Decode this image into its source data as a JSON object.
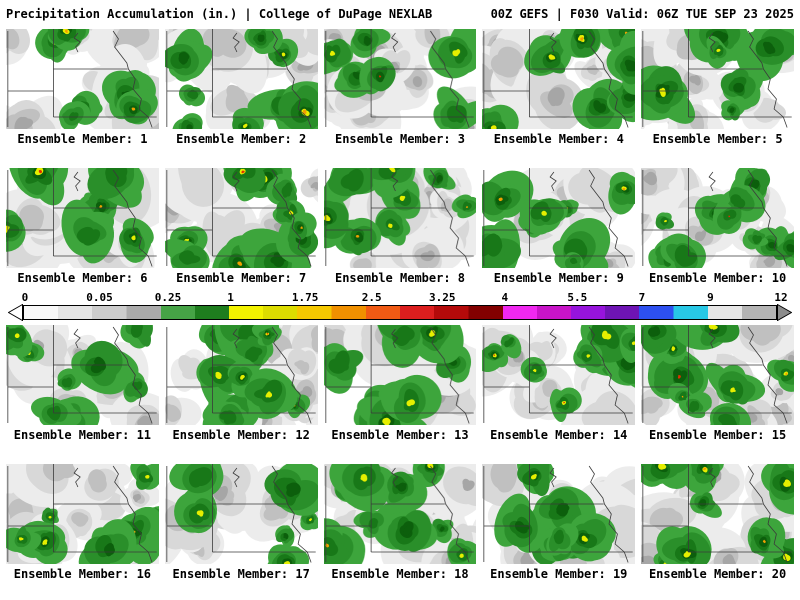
{
  "header": {
    "left": "Precipitation Accumulation (in.) | College of DuPage NEXLAB",
    "right": "00Z GEFS | F030 Valid: 06Z TUE SEP 23 2025"
  },
  "colorbar": {
    "ticks": [
      "0",
      "0.05",
      "0.25",
      "1",
      "1.75",
      "2.5",
      "3.25",
      "4",
      "5.5",
      "7",
      "9",
      "12"
    ],
    "segments": [
      [
        "#f8f8f8",
        "#e4e4e4"
      ],
      [
        "#cccccc",
        "#ababab"
      ],
      [
        "#46a346",
        "#1e7d1e"
      ],
      [
        "#f2f200",
        "#dcdc00"
      ],
      [
        "#f5c800",
        "#f09000"
      ],
      [
        "#f05a14",
        "#dc1e1e"
      ],
      [
        "#b40a0a",
        "#820000"
      ],
      [
        "#f028f0",
        "#c814c8"
      ],
      [
        "#9614dc",
        "#6e14b4"
      ],
      [
        "#2d50f0",
        "#28c8e6"
      ],
      [
        "#e6e6e6",
        "#b4b4b4"
      ]
    ],
    "left_arrow_color": "#ffffff",
    "right_arrow_color": "#8c8c8c"
  },
  "members": {
    "labels": [
      "Ensemble Member: 1",
      "Ensemble Member: 2",
      "Ensemble Member: 3",
      "Ensemble Member: 4",
      "Ensemble Member: 5",
      "Ensemble Member: 6",
      "Ensemble Member: 7",
      "Ensemble Member: 8",
      "Ensemble Member: 9",
      "Ensemble Member: 10",
      "Ensemble Member: 11",
      "Ensemble Member: 12",
      "Ensemble Member: 13",
      "Ensemble Member: 14",
      "Ensemble Member: 15",
      "Ensemble Member: 16",
      "Ensemble Member: 17",
      "Ensemble Member: 18",
      "Ensemble Member: 19",
      "Ensemble Member: 20"
    ]
  },
  "map_style": {
    "background": "#ffffff",
    "grays": [
      "#ececec",
      "#d8d8d8",
      "#c0c0c0",
      "#a6a6a6"
    ],
    "greens": [
      "#3da53c",
      "#2a8f2a",
      "#187818",
      "#0c5f0c"
    ],
    "yellow": "#e6ef00",
    "orange": "#f0a000",
    "red": "#e03000",
    "border_color": "#3a3a3a"
  }
}
